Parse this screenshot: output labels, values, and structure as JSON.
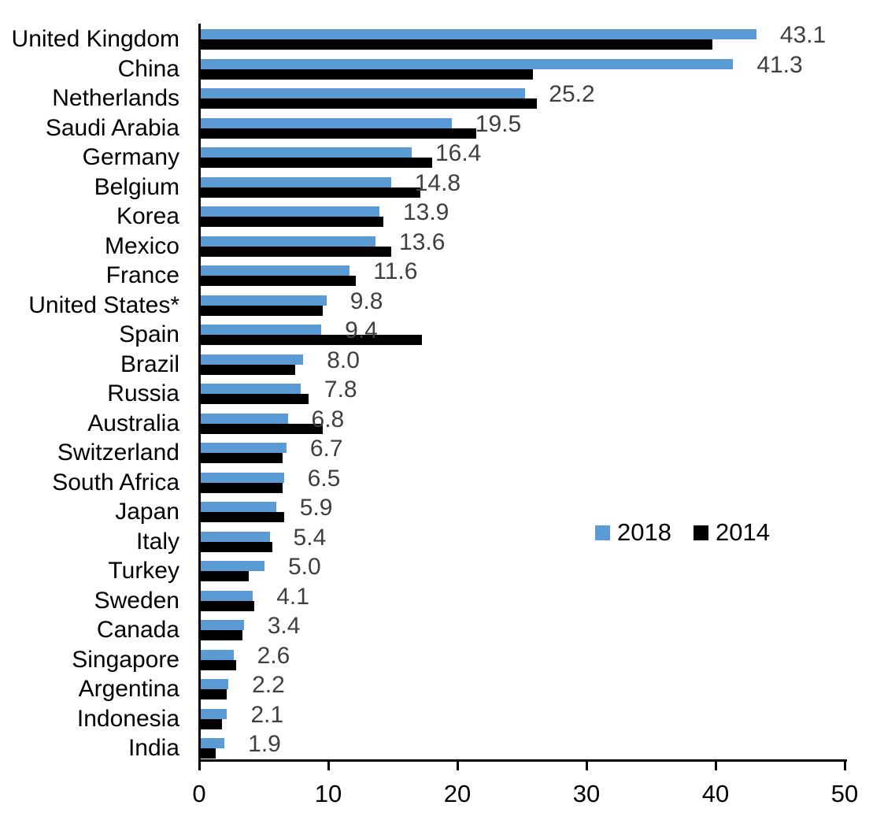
{
  "chart_data": {
    "type": "bar",
    "orientation": "horizontal",
    "title": "",
    "xlabel": "",
    "ylabel": "",
    "xlim": [
      0,
      50
    ],
    "x_ticks": [
      0,
      10,
      20,
      30,
      40,
      50
    ],
    "grid": false,
    "legend_position": "center-right",
    "value_label_color": "#3f3f3f",
    "categories": [
      "United Kingdom",
      "China",
      "Netherlands",
      "Saudi Arabia",
      "Germany",
      "Belgium",
      "Korea",
      "Mexico",
      "France",
      "United States*",
      "Spain",
      "Brazil",
      "Russia",
      "Australia",
      "Switzerland",
      "South Africa",
      "Japan",
      "Italy",
      "Turkey",
      "Sweden",
      "Canada",
      "Singapore",
      "Argentina",
      "Indonesia",
      "India"
    ],
    "series": [
      {
        "name": "2018",
        "color": "#5B9BD5",
        "values": [
          43.1,
          41.3,
          25.2,
          19.5,
          16.4,
          14.8,
          13.9,
          13.6,
          11.6,
          9.8,
          9.4,
          8.0,
          7.8,
          6.8,
          6.7,
          6.5,
          5.9,
          5.4,
          5.0,
          4.1,
          3.4,
          2.6,
          2.2,
          2.1,
          1.9
        ],
        "data_labels": [
          "43.1",
          "41.3",
          "25.2",
          "19.5",
          "16.4",
          "14.8",
          "13.9",
          "13.6",
          "11.6",
          "9.8",
          "9.4",
          "8.0",
          "7.8",
          "6.8",
          "6.7",
          "6.5",
          "5.9",
          "5.4",
          "5.0",
          "4.1",
          "3.4",
          "2.6",
          "2.2",
          "2.1",
          "1.9"
        ]
      },
      {
        "name": "2014",
        "color": "#000000",
        "values": [
          39.7,
          25.8,
          26.1,
          21.4,
          18.0,
          17.1,
          14.2,
          14.8,
          12.1,
          9.5,
          17.2,
          7.4,
          8.4,
          9.5,
          6.4,
          6.4,
          6.5,
          5.6,
          3.8,
          4.2,
          3.3,
          2.8,
          2.1,
          1.7,
          1.2
        ]
      }
    ]
  }
}
